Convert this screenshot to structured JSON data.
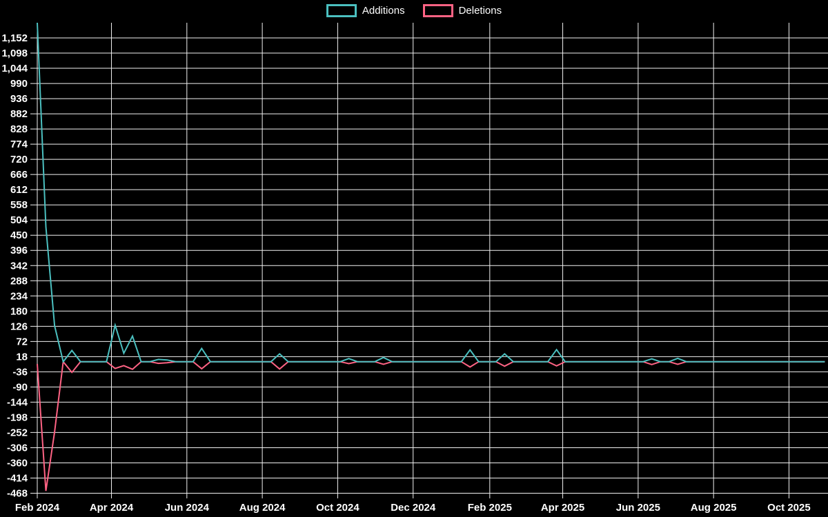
{
  "legend": {
    "items": [
      {
        "label": "Additions",
        "color": "#4bc0c0"
      },
      {
        "label": "Deletions",
        "color": "#ff6384"
      }
    ]
  },
  "colors": {
    "background": "#000000",
    "grid": "#f2f2f2",
    "tick_text": "#ffffff",
    "additions": "#4bc0c0",
    "deletions": "#ff6384"
  },
  "chart_data": {
    "type": "line",
    "title": "",
    "xlabel": "",
    "ylabel": "",
    "grid": true,
    "legend_position": "top",
    "ylim": [
      -468,
      1206
    ],
    "x_domain": [
      "2024-02-01",
      "2025-11-01"
    ],
    "y_tick_labels": [
      "1,152",
      "1,098",
      "1,044",
      "990",
      "936",
      "882",
      "828",
      "774",
      "720",
      "666",
      "612",
      "558",
      "504",
      "450",
      "396",
      "342",
      "288",
      "234",
      "180",
      "126",
      "72",
      "18",
      "-36",
      "-90",
      "-144",
      "-198",
      "-252",
      "-306",
      "-360",
      "-414",
      "-468"
    ],
    "x_ticks": [
      {
        "label": "Feb 2024",
        "date": "2024-02-01"
      },
      {
        "label": "Apr 2024",
        "date": "2024-04-01"
      },
      {
        "label": "Jun 2024",
        "date": "2024-06-01"
      },
      {
        "label": "Aug 2024",
        "date": "2024-08-01"
      },
      {
        "label": "Oct 2024",
        "date": "2024-10-01"
      },
      {
        "label": "Dec 2024",
        "date": "2024-12-01"
      },
      {
        "label": "Feb 2025",
        "date": "2025-02-01"
      },
      {
        "label": "Apr 2025",
        "date": "2025-04-01"
      },
      {
        "label": "Jun 2025",
        "date": "2025-06-01"
      },
      {
        "label": "Aug 2025",
        "date": "2025-08-01"
      },
      {
        "label": "Oct 2025",
        "date": "2025-10-01"
      }
    ],
    "weeks": {
      "start_date": "2024-02-01",
      "interval_days": 7,
      "n_points": 92
    },
    "series": [
      {
        "name": "Additions",
        "color": "#4bc0c0",
        "values": [
          1206,
          480,
          128,
          0,
          40,
          0,
          0,
          0,
          0,
          130,
          30,
          91,
          0,
          0,
          8,
          6,
          0,
          0,
          0,
          47,
          0,
          0,
          0,
          0,
          0,
          0,
          0,
          0,
          28,
          0,
          0,
          0,
          0,
          0,
          0,
          0,
          11,
          0,
          0,
          0,
          15,
          0,
          0,
          0,
          0,
          0,
          0,
          0,
          0,
          0,
          42,
          0,
          0,
          0,
          28,
          0,
          0,
          0,
          0,
          0,
          43,
          0,
          0,
          0,
          0,
          0,
          0,
          0,
          0,
          0,
          0,
          10,
          0,
          0,
          12,
          0,
          0,
          0,
          0,
          0,
          0,
          0,
          0,
          0,
          0,
          0,
          0,
          0,
          0,
          0,
          0,
          0
        ]
      },
      {
        "name": "Deletions",
        "color": "#ff6384",
        "values": [
          -8,
          -460,
          -250,
          0,
          -38,
          0,
          0,
          0,
          0,
          -24,
          -14,
          -27,
          0,
          0,
          -6,
          -4,
          0,
          0,
          0,
          -25,
          0,
          0,
          0,
          0,
          0,
          0,
          0,
          0,
          -26,
          0,
          0,
          0,
          0,
          0,
          0,
          0,
          -7,
          0,
          0,
          0,
          -9,
          0,
          0,
          0,
          0,
          0,
          0,
          0,
          0,
          0,
          -19,
          0,
          0,
          0,
          -16,
          0,
          0,
          0,
          0,
          0,
          -15,
          0,
          0,
          0,
          0,
          0,
          0,
          0,
          0,
          0,
          0,
          -10,
          0,
          0,
          -9,
          0,
          0,
          0,
          0,
          0,
          0,
          0,
          0,
          0,
          0,
          0,
          0,
          0,
          0,
          0,
          0,
          0
        ]
      }
    ]
  }
}
